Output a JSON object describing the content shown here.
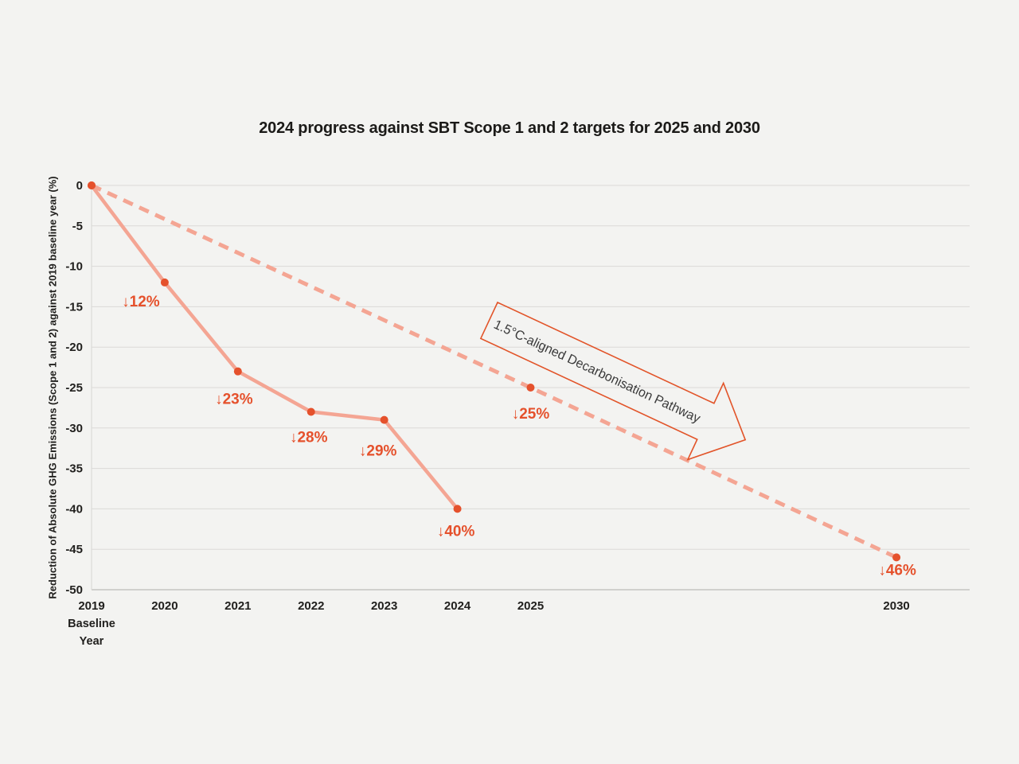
{
  "chart_data": {
    "type": "line",
    "title": "2024 progress against SBT Scope 1 and 2 targets for 2025 and 2030",
    "ylabel": "Reduction of Absolute GHG Emissions (Scope 1 and 2) against 2019 baseline year (%)",
    "xlabel": "",
    "ylim": [
      -50,
      0
    ],
    "x_range": [
      2019,
      2031
    ],
    "grid": "horizontal",
    "legend": "none",
    "y_ticks": [
      0,
      -5,
      -10,
      -15,
      -20,
      -25,
      -30,
      -35,
      -40,
      -45,
      -50
    ],
    "x_ticks": [
      {
        "year": 2019,
        "label": "2019",
        "note": "Baseline Year"
      },
      {
        "year": 2020,
        "label": "2020"
      },
      {
        "year": 2021,
        "label": "2021"
      },
      {
        "year": 2022,
        "label": "2022"
      },
      {
        "year": 2023,
        "label": "2023"
      },
      {
        "year": 2024,
        "label": "2024"
      },
      {
        "year": 2025,
        "label": "2025"
      },
      {
        "year": 2030,
        "label": "2030"
      }
    ],
    "series": [
      {
        "name": "actual",
        "style": "solid",
        "points": [
          {
            "year": 2019,
            "value": 0,
            "label": ""
          },
          {
            "year": 2020,
            "value": -12,
            "label": "↓12%"
          },
          {
            "year": 2021,
            "value": -23,
            "label": "↓23%"
          },
          {
            "year": 2022,
            "value": -28,
            "label": "↓28%"
          },
          {
            "year": 2023,
            "value": -29,
            "label": "↓29%"
          },
          {
            "year": 2024,
            "value": -40,
            "label": "↓40%"
          }
        ]
      },
      {
        "name": "pathway",
        "style": "dashed",
        "points": [
          {
            "year": 2019,
            "value": 0,
            "label": ""
          },
          {
            "year": 2025,
            "value": -25,
            "label": "↓25%"
          },
          {
            "year": 2030,
            "value": -46,
            "label": "↓46%"
          }
        ]
      }
    ],
    "annotation": {
      "text": "1.5°C-aligned Decarbonisation Pathway"
    },
    "colors": {
      "background": "#f3f3f1",
      "grid": "#dbdad7",
      "axis": "#c5c4c1",
      "line": "#f4a593",
      "marker": "#e5512c",
      "data_label": "#e5512c",
      "annotation_outline": "#e25429",
      "annotation_text": "#3a3a3a",
      "tick_text": "#21201e"
    }
  }
}
